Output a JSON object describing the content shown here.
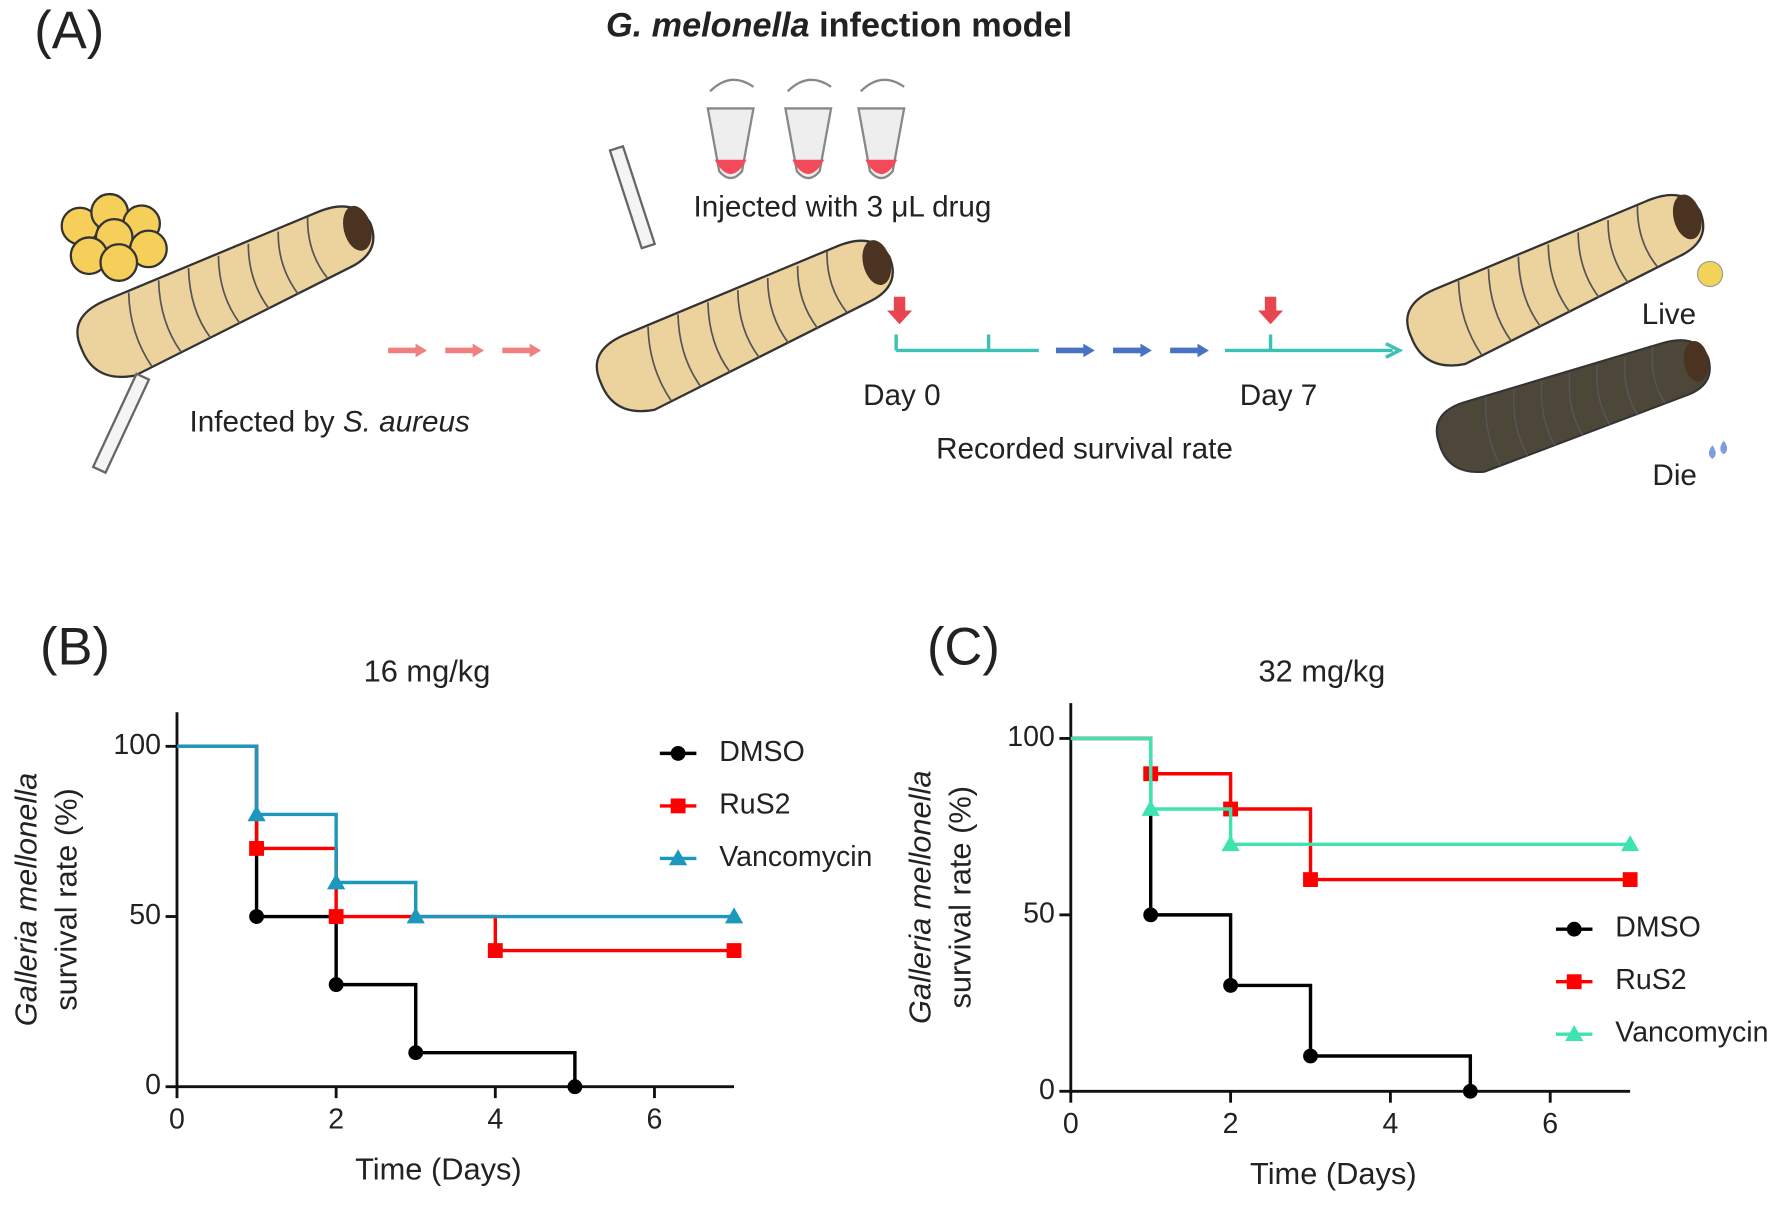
{
  "panel_a": {
    "label": "(A)",
    "title": [
      "G. melonella",
      " infection model"
    ],
    "injected": "Injected with 3 μL drug",
    "infected": [
      "Infected by ",
      "S. aureus"
    ],
    "day0": "Day 0",
    "day7": "Day 7",
    "recorded": "Recorded survival rate",
    "live": "Live",
    "die": "Die"
  },
  "chart_data": [
    {
      "type": "step",
      "panel": "(B)",
      "title": "16 mg/kg",
      "xlabel": "Time (Days)",
      "ylabel": [
        "Galleria mellonella",
        "survival rate (%)"
      ],
      "xlim": [
        0,
        7
      ],
      "ylim": [
        0,
        110
      ],
      "xticks": [
        0,
        2,
        4,
        6
      ],
      "yticks": [
        0,
        50,
        100
      ],
      "legend": "upper right",
      "series": [
        {
          "name": "DMSO",
          "color": "#000000",
          "marker": "circle",
          "x": [
            0,
            1,
            2,
            3,
            5
          ],
          "values": [
            100,
            50,
            30,
            10,
            0
          ]
        },
        {
          "name": "RuS2",
          "color": "#ff0000",
          "marker": "square",
          "x": [
            0,
            1,
            2,
            4,
            7
          ],
          "values": [
            100,
            70,
            50,
            40,
            40
          ]
        },
        {
          "name": "Vancomycin",
          "color": "#1d98bd",
          "marker": "triangle",
          "x": [
            0,
            1,
            2,
            3,
            7
          ],
          "values": [
            100,
            80,
            60,
            50,
            50
          ]
        }
      ]
    },
    {
      "type": "step",
      "panel": "(C)",
      "title": "32 mg/kg",
      "xlabel": "Time (Days)",
      "ylabel": [
        "Galleria mellonella",
        "survival rate (%)"
      ],
      "xlim": [
        0,
        7
      ],
      "ylim": [
        0,
        110
      ],
      "xticks": [
        0,
        2,
        4,
        6
      ],
      "yticks": [
        0,
        50,
        100
      ],
      "legend": "lower right",
      "series": [
        {
          "name": "DMSO",
          "color": "#000000",
          "marker": "circle",
          "x": [
            0,
            1,
            2,
            3,
            5
          ],
          "values": [
            100,
            50,
            30,
            10,
            0
          ]
        },
        {
          "name": "RuS2",
          "color": "#ff0000",
          "marker": "square",
          "x": [
            0,
            1,
            2,
            3,
            7
          ],
          "values": [
            100,
            90,
            80,
            60,
            60
          ]
        },
        {
          "name": "Vancomycin",
          "color": "#3fe3b0",
          "marker": "triangle",
          "x": [
            0,
            1,
            2,
            7
          ],
          "values": [
            100,
            80,
            70,
            70
          ]
        }
      ]
    }
  ]
}
